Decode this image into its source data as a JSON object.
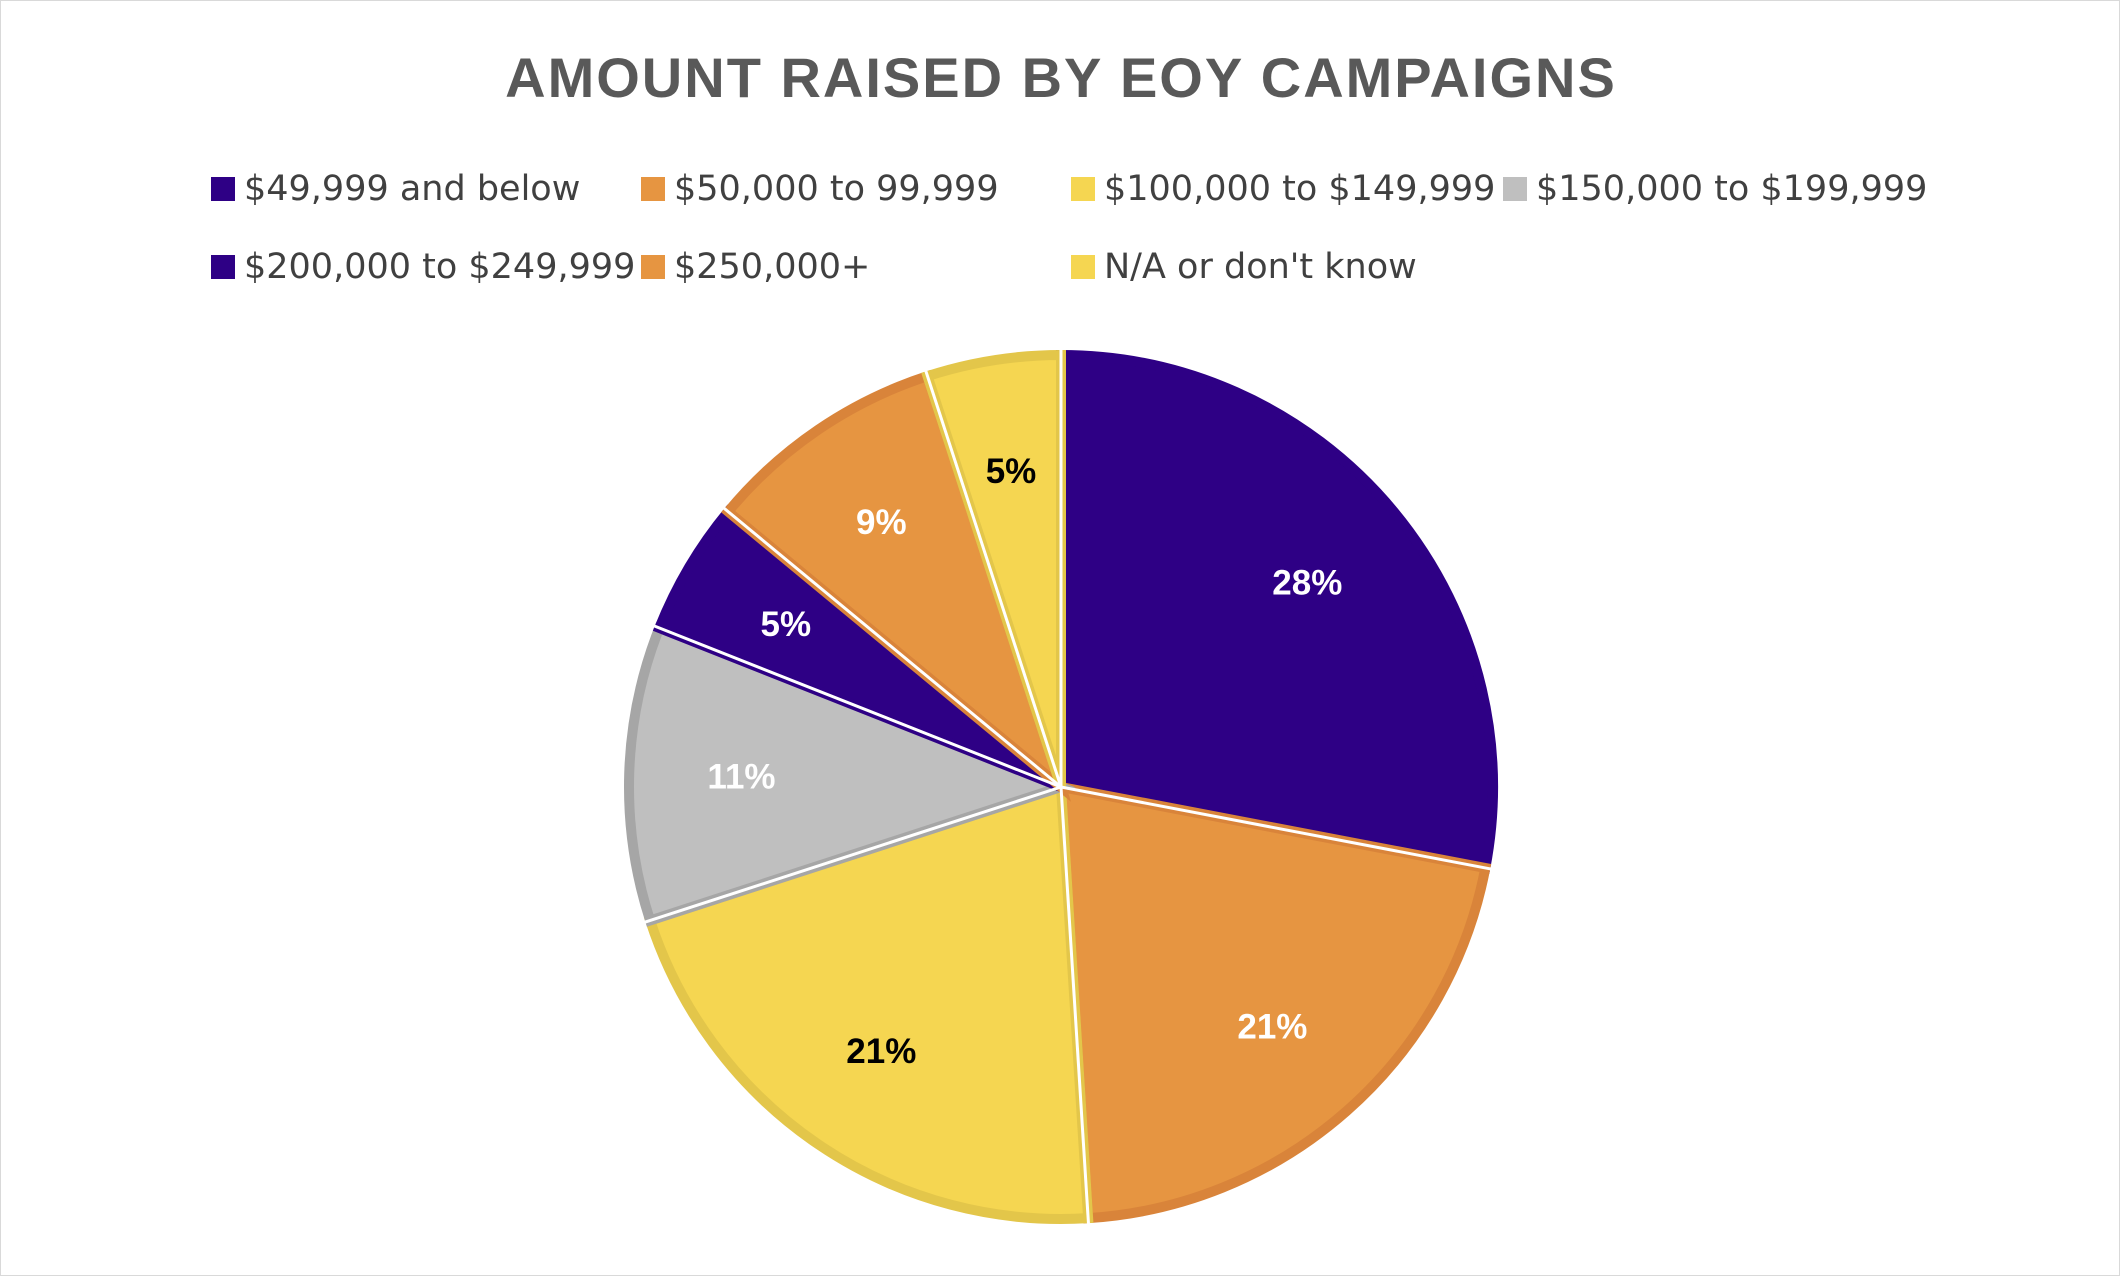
{
  "chart_data": {
    "type": "pie",
    "title": "AMOUNT RAISED BY EOY CAMPAIGNS",
    "legend_position": "top",
    "categories": [
      "$49,999 and below",
      "$50,000 to 99,999",
      "$100,000 to $149,999",
      "$150,000 to $199,999",
      "$200,000 to $249,999",
      "$250,000+",
      "N/A or don't know"
    ],
    "values": [
      28,
      21,
      21,
      11,
      5,
      9,
      5
    ],
    "data_labels": [
      "28%",
      "21%",
      "21%",
      "11%",
      "5%",
      "9%",
      "5%"
    ],
    "colors": [
      "#2e0085",
      "#e69541",
      "#f5d651",
      "#bfbfbf",
      "#2e0085",
      "#e69541",
      "#f5d651"
    ],
    "border_colors": [
      "#2e0085",
      "#d9843a",
      "#e3c64a",
      "#a6a6a6",
      "#2e0085",
      "#d9843a",
      "#e3c64a"
    ],
    "label_colors": [
      "#ffffff",
      "#ffffff",
      "#000000",
      "#ffffff",
      "#ffffff",
      "#ffffff",
      "#000000"
    ]
  }
}
